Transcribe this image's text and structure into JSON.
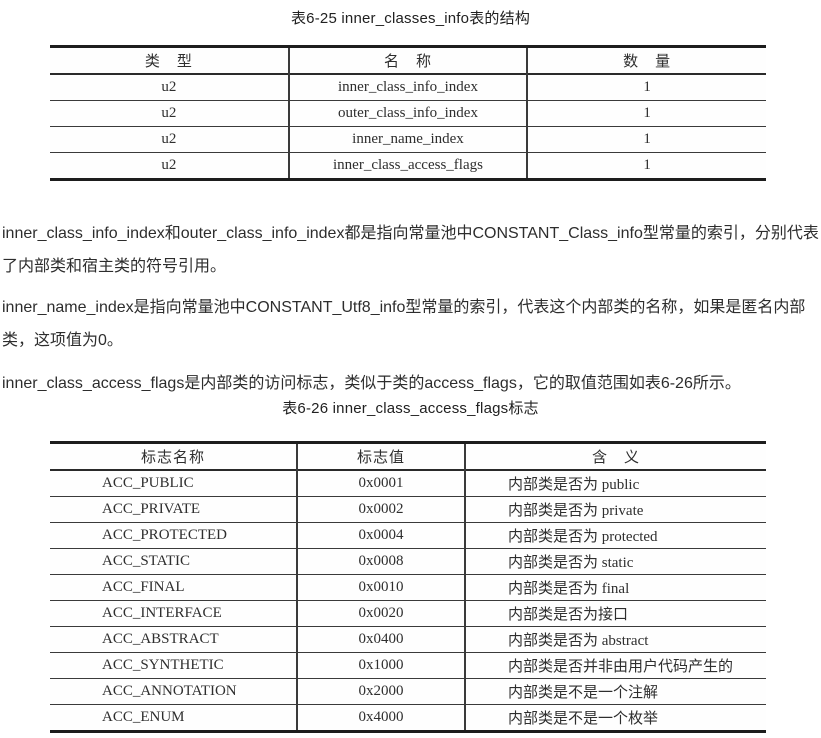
{
  "table1": {
    "caption": "表6-25 inner_classes_info表的结构",
    "headers": [
      "类　型",
      "名　称",
      "数　量"
    ],
    "rows": [
      [
        "u2",
        "inner_class_info_index",
        "1"
      ],
      [
        "u2",
        "outer_class_info_index",
        "1"
      ],
      [
        "u2",
        "inner_name_index",
        "1"
      ],
      [
        "u2",
        "inner_class_access_flags",
        "1"
      ]
    ]
  },
  "paragraphs": [
    "inner_class_info_index和outer_class_info_index都是指向常量池中CONSTANT_Class_info型常量的索引，分别代表了内部类和宿主类的符号引用。",
    "inner_name_index是指向常量池中CONSTANT_Utf8_info型常量的索引，代表这个内部类的名称，如果是匿名内部类，这项值为0。",
    "inner_class_access_flags是内部类的访问标志，类似于类的access_flags，它的取值范围如表6-26所示。"
  ],
  "table2": {
    "caption": "表6-26 inner_class_access_flags标志",
    "headers": [
      "标志名称",
      "标志值",
      "含　义"
    ],
    "rows": [
      [
        "ACC_PUBLIC",
        "0x0001",
        "内部类是否为 public"
      ],
      [
        "ACC_PRIVATE",
        "0x0002",
        "内部类是否为 private"
      ],
      [
        "ACC_PROTECTED",
        "0x0004",
        "内部类是否为 protected"
      ],
      [
        "ACC_STATIC",
        "0x0008",
        "内部类是否为 static"
      ],
      [
        "ACC_FINAL",
        "0x0010",
        "内部类是否为 final"
      ],
      [
        "ACC_INTERFACE",
        "0x0020",
        "内部类是否为接口"
      ],
      [
        "ACC_ABSTRACT",
        "0x0400",
        "内部类是否为 abstract"
      ],
      [
        "ACC_SYNTHETIC",
        "0x1000",
        "内部类是否并非由用户代码产生的"
      ],
      [
        "ACC_ANNOTATION",
        "0x2000",
        "内部类是不是一个注解"
      ],
      [
        "ACC_ENUM",
        "0x4000",
        "内部类是不是一个枚举"
      ]
    ]
  },
  "colors": {
    "table_border": "#1d1d1d",
    "text": "#2d2d2d"
  }
}
